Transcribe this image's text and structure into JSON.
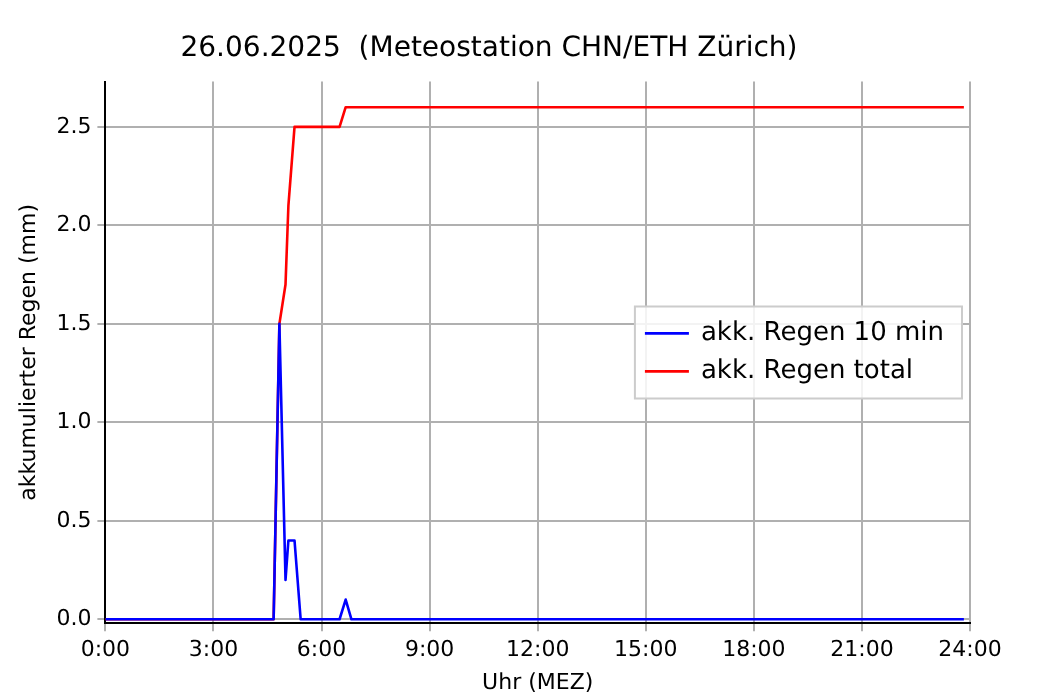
{
  "chart_data": {
    "type": "line",
    "title": "26.06.2025  (Meteostation CHN/ETH Zürich)",
    "xlabel": "Uhr (MEZ)",
    "ylabel": "akkumulierter Regen (mm)",
    "xlim": [
      0,
      24
    ],
    "ylim": [
      -0.02,
      2.73
    ],
    "xticks": [
      {
        "value": 0,
        "label": "0:00"
      },
      {
        "value": 3,
        "label": "3:00"
      },
      {
        "value": 6,
        "label": "6:00"
      },
      {
        "value": 9,
        "label": "9:00"
      },
      {
        "value": 12,
        "label": "12:00"
      },
      {
        "value": 15,
        "label": "15:00"
      },
      {
        "value": 18,
        "label": "18:00"
      },
      {
        "value": 21,
        "label": "21:00"
      },
      {
        "value": 24,
        "label": "24:00"
      }
    ],
    "yticks": [
      {
        "value": 0,
        "label": "0.0"
      },
      {
        "value": 0.5,
        "label": "0.5"
      },
      {
        "value": 1,
        "label": "1.0"
      },
      {
        "value": 1.5,
        "label": "1.5"
      },
      {
        "value": 2,
        "label": "2.0"
      },
      {
        "value": 2.5,
        "label": "2.5"
      }
    ],
    "grid": true,
    "legend": "center right",
    "marker": "none",
    "line_style": "solid",
    "series": [
      {
        "name": "akk. Regen 10 min",
        "color": "#0000ff",
        "x": [
          0,
          4.67,
          4.83,
          5.0,
          5.08,
          5.25,
          5.42,
          6.5,
          6.67,
          6.83,
          23.83
        ],
        "values": [
          0,
          0,
          1.5,
          0.2,
          0.4,
          0.4,
          0,
          0,
          0.1,
          0,
          0
        ]
      },
      {
        "name": "akk. Regen total",
        "color": "#ff0000",
        "x": [
          0,
          4.67,
          4.83,
          5.0,
          5.08,
          5.25,
          6.5,
          6.67,
          23.83
        ],
        "values": [
          0,
          0,
          1.5,
          1.7,
          2.1,
          2.5,
          2.5,
          2.6,
          2.6
        ]
      }
    ]
  }
}
